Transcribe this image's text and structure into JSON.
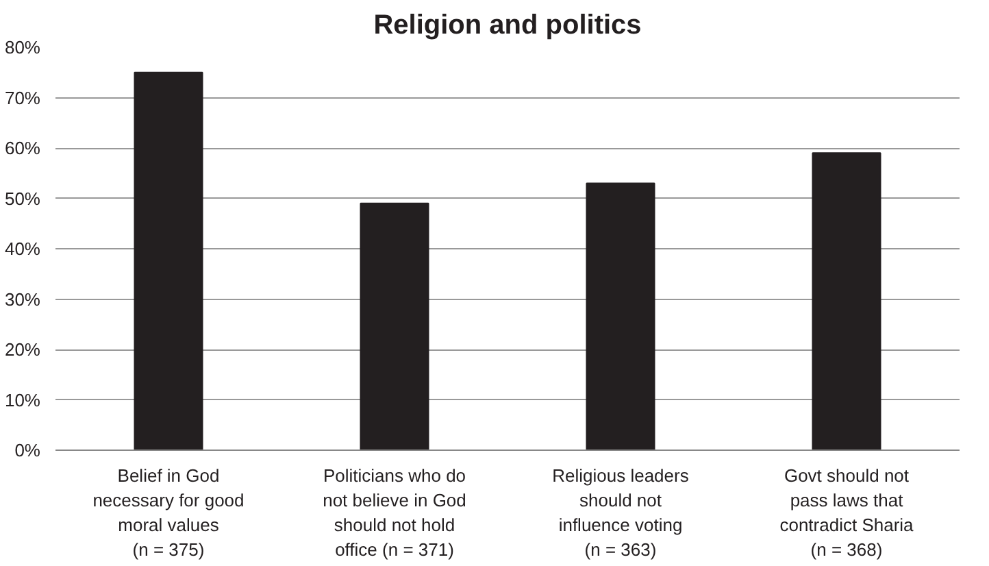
{
  "chart_data": {
    "type": "bar",
    "title": "Religion and politics",
    "categories": [
      "Belief in God\nnecessary for good\nmoral values\n(n = 375)",
      "Politicians who do\nnot believe in God\nshould not hold\noffice (n = 371)",
      "Religious leaders\nshould not\ninfluence voting\n(n = 363)",
      "Govt should not\npass laws that\ncontradict Sharia\n(n = 368)"
    ],
    "values": [
      75,
      49,
      53,
      59
    ],
    "color": "#231f20",
    "ylim": [
      0,
      80
    ],
    "yticks": [
      {
        "value": 0,
        "label": "0%"
      },
      {
        "value": 10,
        "label": "10%"
      },
      {
        "value": 20,
        "label": "20%"
      },
      {
        "value": 30,
        "label": "30%"
      },
      {
        "value": 40,
        "label": "40%"
      },
      {
        "value": 50,
        "label": "50%"
      },
      {
        "value": 60,
        "label": "60%"
      },
      {
        "value": 70,
        "label": "70%"
      },
      {
        "value": 80,
        "label": "80%"
      }
    ],
    "grid": "y"
  }
}
